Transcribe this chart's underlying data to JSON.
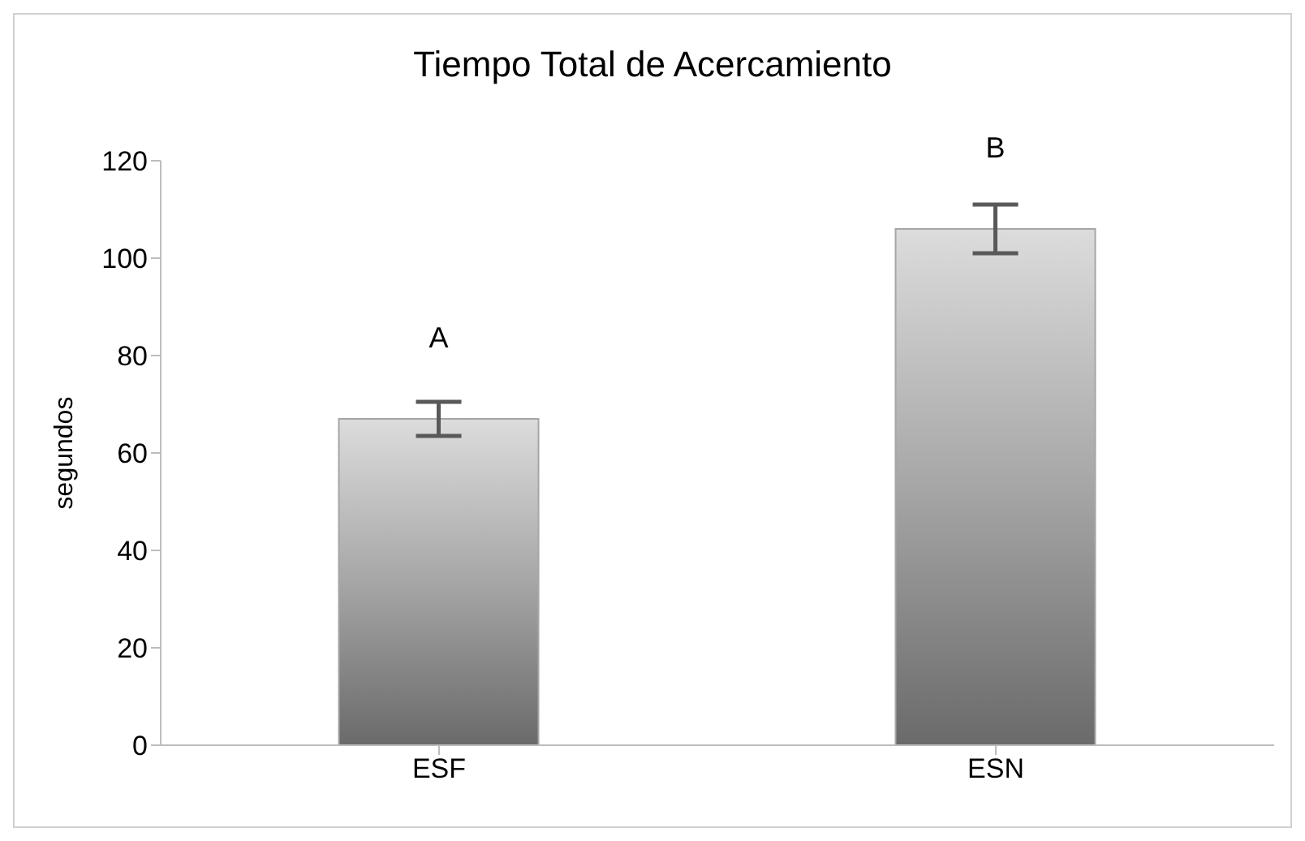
{
  "chart_data": {
    "type": "bar",
    "title": "Tiempo Total de Acercamiento",
    "ylabel": "segundos",
    "categories": [
      "ESF",
      "ESN"
    ],
    "values": [
      67,
      106
    ],
    "errors": [
      3.5,
      5
    ],
    "color": "#a6a6a6",
    "ylim": [
      0,
      120
    ],
    "yticks": [
      0,
      20,
      40,
      60,
      80,
      100,
      120
    ],
    "annotations": [
      "A",
      "B"
    ]
  }
}
